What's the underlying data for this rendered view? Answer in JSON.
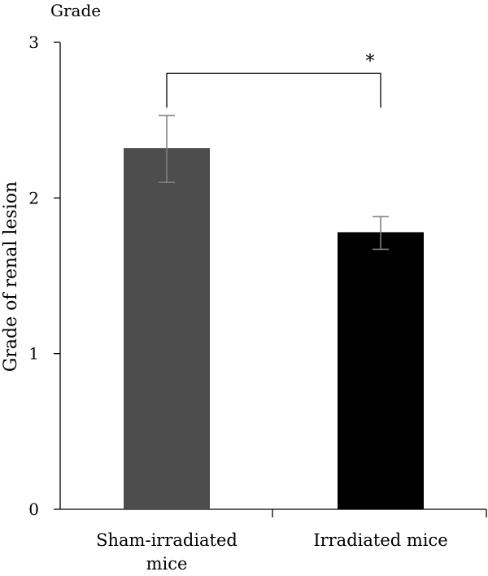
{
  "chart_data": {
    "type": "bar",
    "title": "Grade",
    "xlabel": "",
    "ylabel": "Grade of renal lesion",
    "ylim": [
      0,
      3
    ],
    "yticks": [
      0,
      1,
      2,
      3
    ],
    "grid": false,
    "categories": [
      "Sham-irradiated mice",
      "Irradiated mice"
    ],
    "category_label_lines": [
      [
        "Sham-irradiated",
        "mice"
      ],
      [
        "Irradiated mice"
      ]
    ],
    "values": [
      2.32,
      1.78
    ],
    "error_upper": [
      2.53,
      1.88
    ],
    "error_lower": [
      2.1,
      1.67
    ],
    "bar_colors": [
      "#4d4d4d",
      "#000000"
    ],
    "error_color": "#808080",
    "significance": {
      "label": "*",
      "between": [
        0,
        1
      ],
      "level": 2.8
    }
  }
}
